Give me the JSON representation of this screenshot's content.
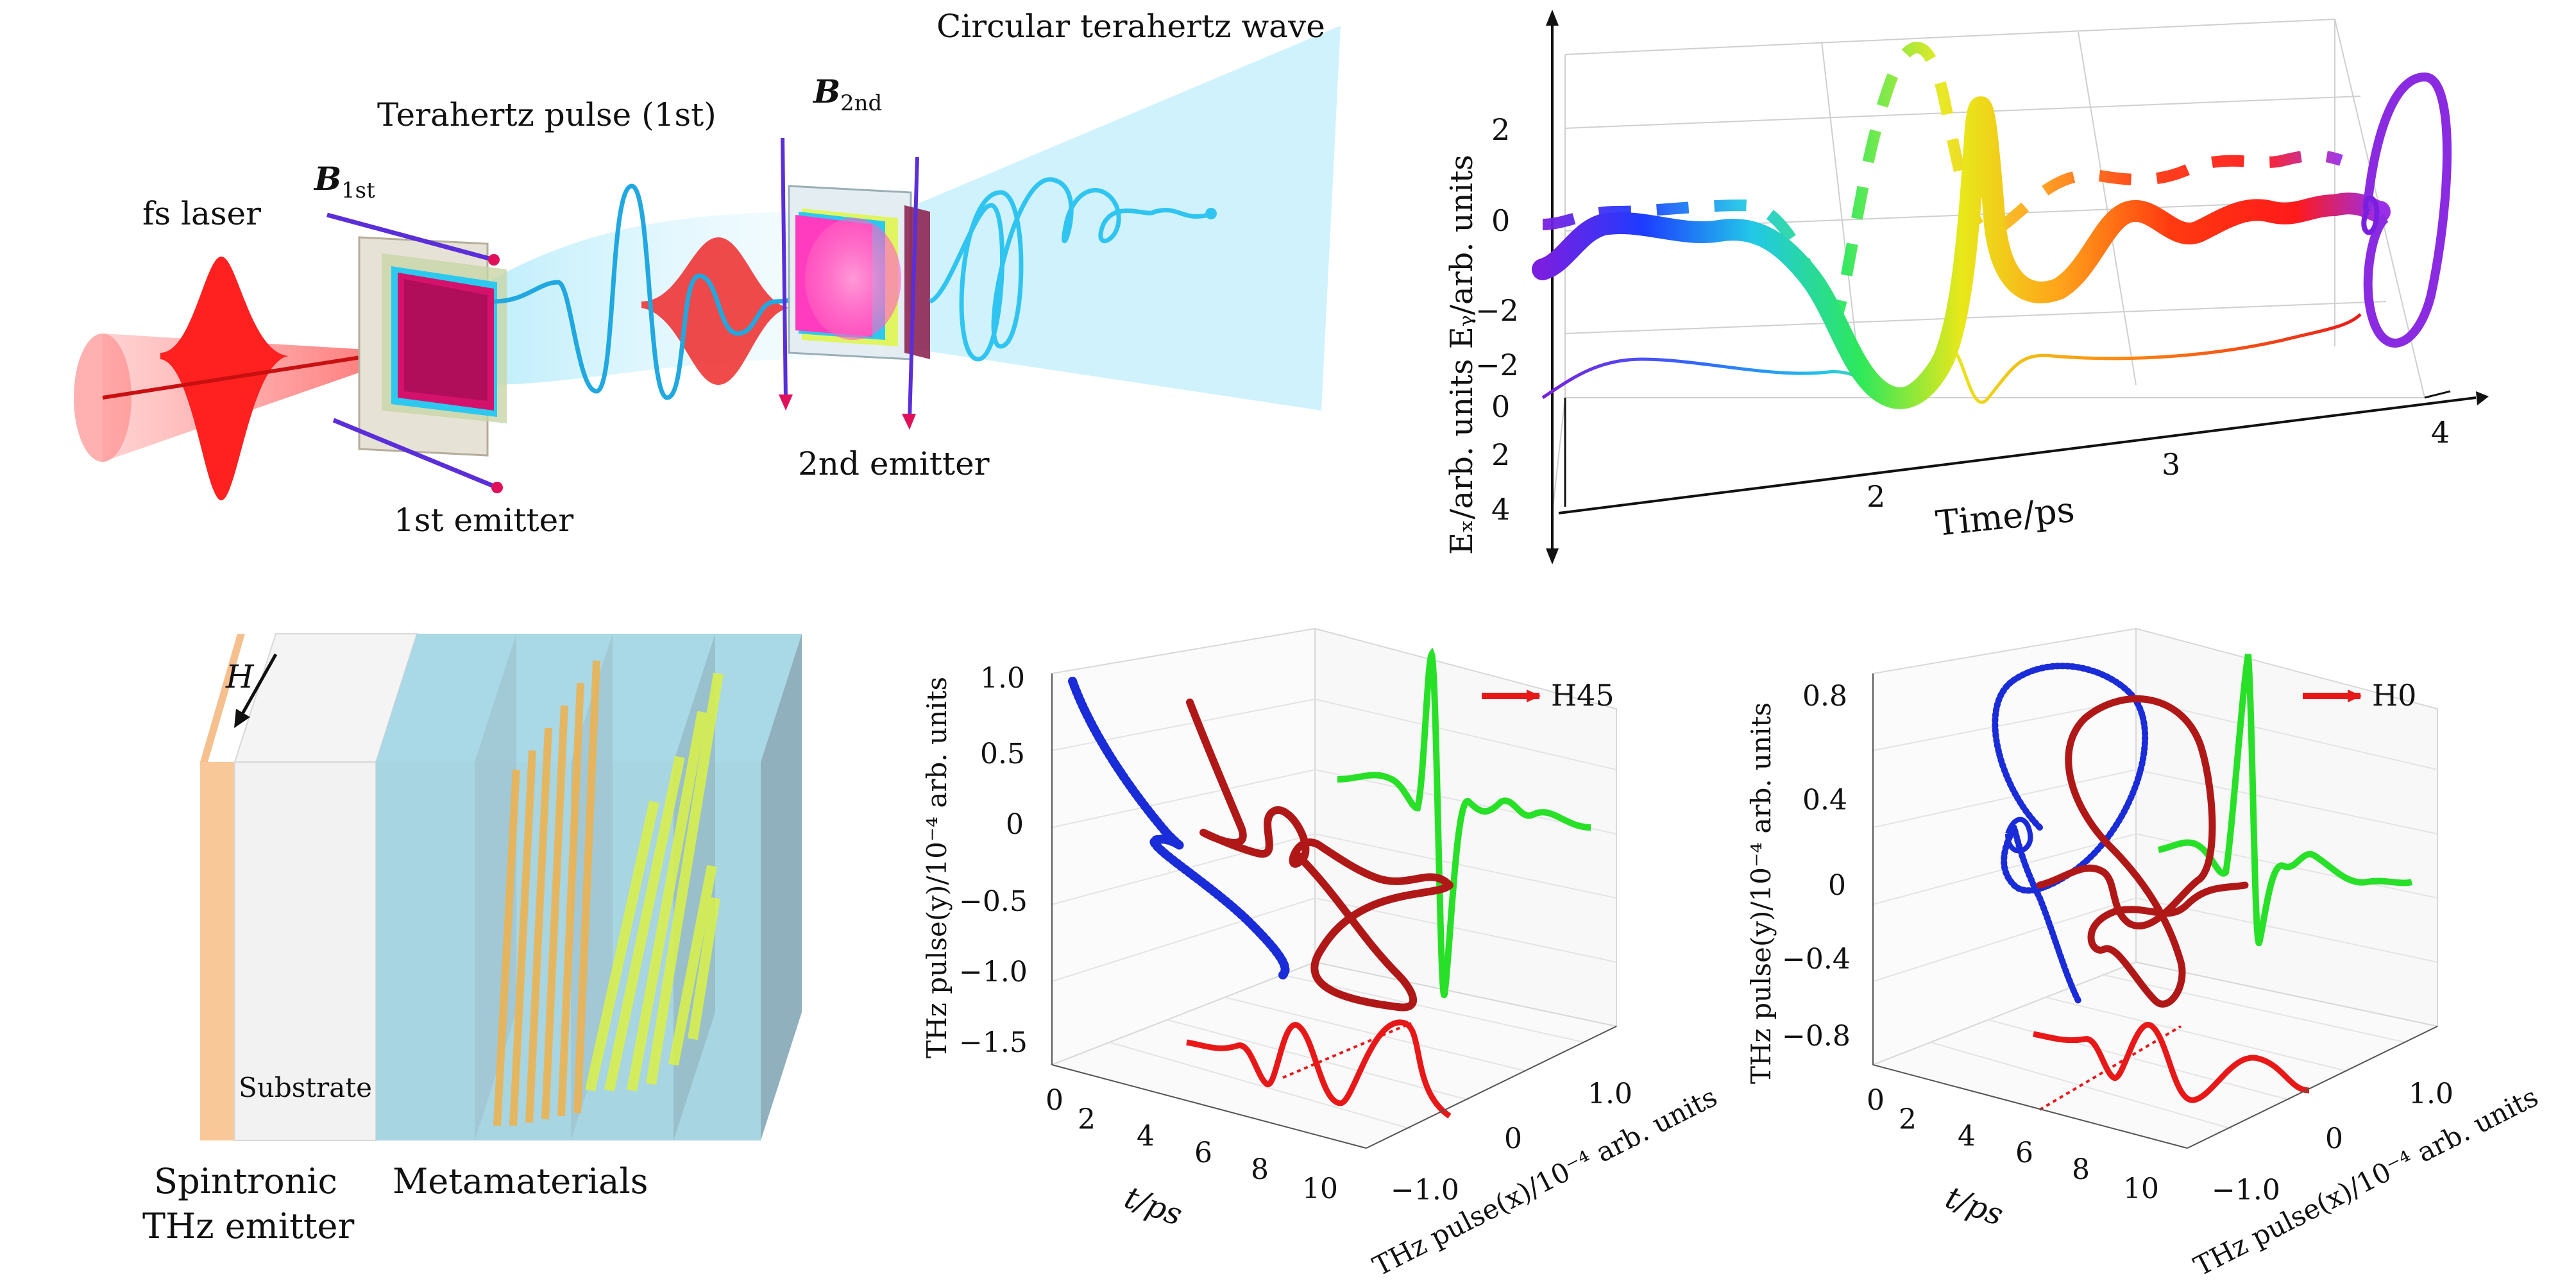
{
  "panel_a": {
    "title": "Circular terahertz wave",
    "pulse_label": "Terahertz pulse (1st)",
    "laser_label": "fs laser",
    "b1_main": "B",
    "b1_sub": "1st",
    "b2_main": "B",
    "b2_sub": "2nd",
    "emitter1": "1st emitter",
    "emitter2": "2nd emitter"
  },
  "panel_b": {
    "xlabel": "Time/ps",
    "y_axis_label": "Eₓ/arb. units Eᵧ/arb. units",
    "ey_ticks": [
      "2",
      "0",
      "−2"
    ],
    "ex_ticks": [
      "−2",
      "0",
      "2",
      "4"
    ],
    "time_ticks": [
      "2",
      "3",
      "4"
    ]
  },
  "panel_c": {
    "h_label": "H",
    "substrate": "Substrate",
    "spintronic_line1": "Spintronic",
    "spintronic_line2": "THz emitter",
    "metamaterials": "Metamaterials"
  },
  "panel_d": {
    "legend": "H45",
    "y_label": "THz pulse(y)/10⁻⁴ arb. units",
    "t_label": "t/ps",
    "x_label": "THz pulse(x)/10⁻⁴ arb. units",
    "y_ticks": [
      "1.0",
      "0.5",
      "0",
      "−0.5",
      "−1.0",
      "−1.5"
    ],
    "t_ticks": [
      "0",
      "2",
      "4",
      "6",
      "8",
      "10"
    ],
    "x_ticks": [
      "1.0",
      "0",
      "−1.0"
    ]
  },
  "panel_e": {
    "legend": "H0",
    "y_label": "THz pulse(y)/10⁻⁴ arb. units",
    "t_label": "t/ps",
    "x_label": "THz pulse(x)/10⁻⁴ arb. units",
    "y_ticks": [
      "0.8",
      "0.4",
      "0",
      "−0.4",
      "−0.8"
    ],
    "t_ticks": [
      "0",
      "2",
      "4",
      "6",
      "8",
      "10"
    ],
    "x_ticks": [
      "1.0",
      "0",
      "−1.0"
    ]
  },
  "colors": {
    "laser": "#ff2222",
    "thz_beam": "#7fd8f2",
    "blue_trace": "#1a2bd8",
    "red_trace": "#b01818",
    "green_trace": "#22e022",
    "red_projection": "#e81818",
    "purple": "#8a2be2"
  }
}
